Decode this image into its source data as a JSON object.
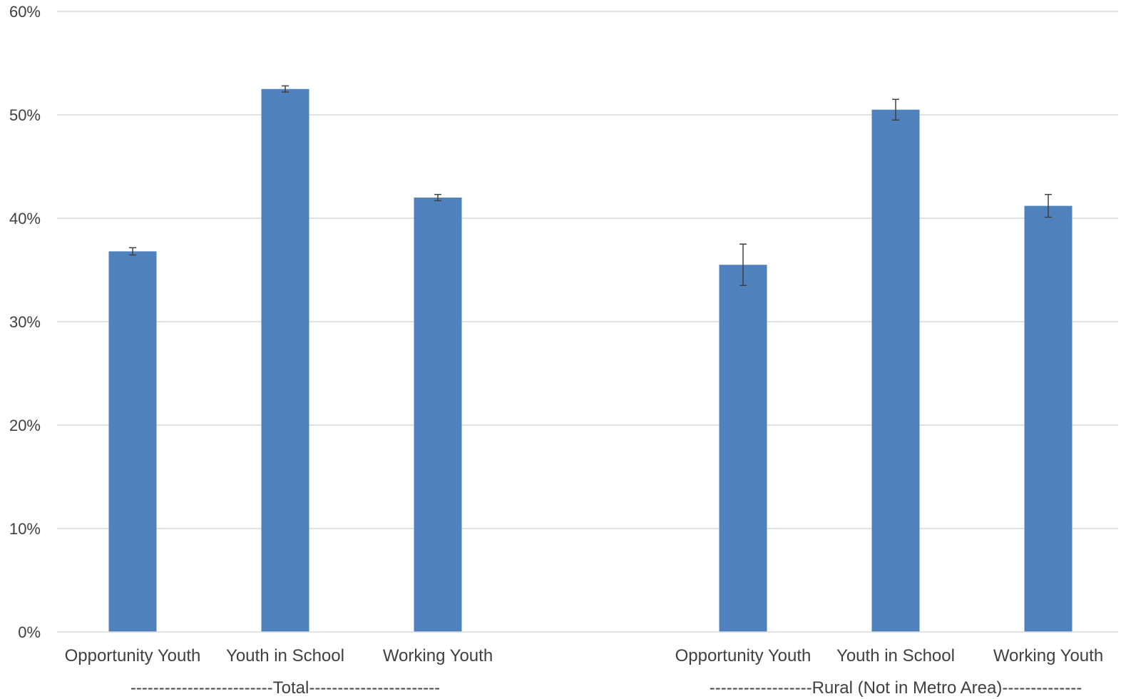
{
  "chart_data": {
    "type": "bar",
    "title": "",
    "xlabel": "",
    "ylabel": "",
    "ylim": [
      0,
      60
    ],
    "y_ticks": [
      "0%",
      "10%",
      "20%",
      "30%",
      "40%",
      "50%",
      "60%"
    ],
    "y_tick_values": [
      0,
      10,
      20,
      30,
      40,
      50,
      60
    ],
    "grid": true,
    "legend": "none",
    "bar_color": "#4F81BD",
    "error_bar_color": "#404040",
    "groups": [
      {
        "label": "-------------------------Total-----------------------",
        "categories": [
          "Opportunity Youth",
          "Youth in School",
          "Working Youth"
        ],
        "values": [
          36.8,
          52.5,
          42.0
        ],
        "error": [
          0.35,
          0.3,
          0.3
        ]
      },
      {
        "label": "------------------Rural (Not in Metro Area)--------------",
        "categories": [
          "Opportunity Youth",
          "Youth in School",
          "Working Youth"
        ],
        "values": [
          35.5,
          50.5,
          41.2
        ],
        "error": [
          2.0,
          1.0,
          1.1
        ]
      }
    ]
  }
}
